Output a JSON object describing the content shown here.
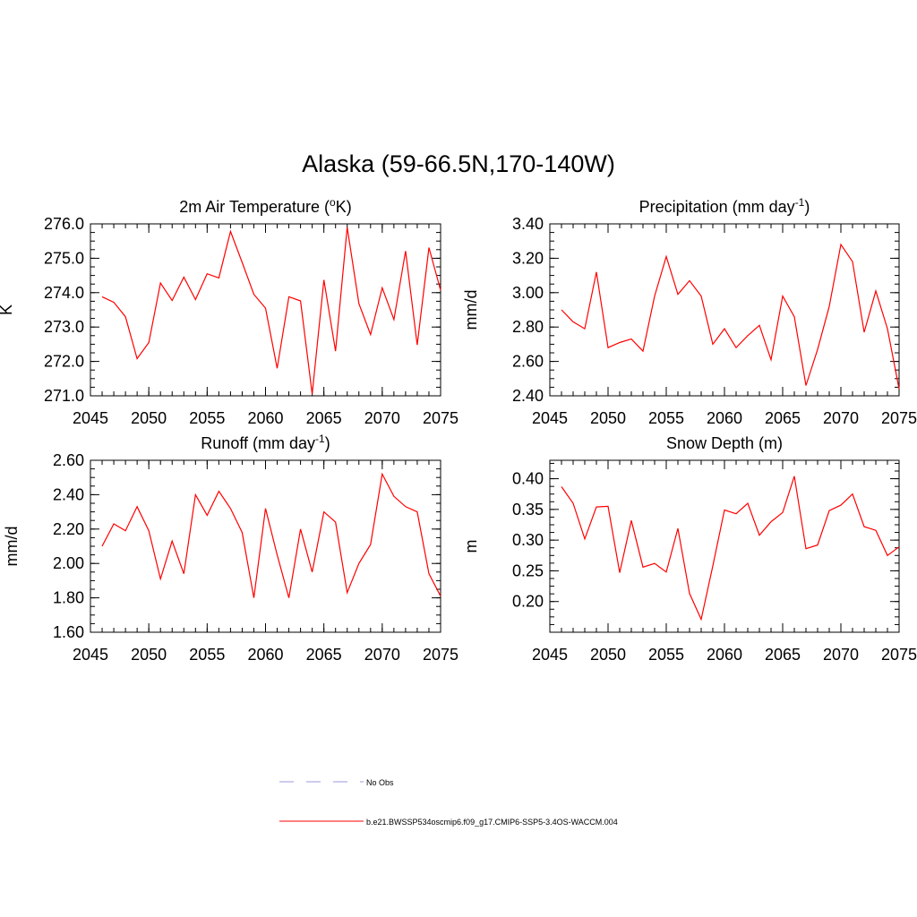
{
  "title": "Alaska (59-66.5N,170-140W)",
  "legend": {
    "obs_label": "No Obs",
    "obs_color": "#9999dd",
    "model_label": "b.e21.BWSSP534oscmip6.f09_g17.CMIP6-SSP5-3.4OS-WACCM.004",
    "model_color": "#ff0000"
  },
  "chart_data": [
    {
      "type": "line",
      "title": "2m Air Temperature (",
      "title_sup": "o",
      "title_suffix": "K)",
      "ylabel": "K",
      "xlabel": "",
      "xlim": [
        2045,
        2075
      ],
      "ylim": [
        271.0,
        276.0
      ],
      "xticks": [
        2045,
        2050,
        2055,
        2060,
        2065,
        2070,
        2075
      ],
      "xtick_labels": [
        "2045",
        "2050",
        "2055",
        "2060",
        "2065",
        "2070",
        "2075"
      ],
      "yticks": [
        271.0,
        272.0,
        273.0,
        274.0,
        275.0,
        276.0
      ],
      "ytick_labels": [
        "271.0",
        "272.0",
        "273.0",
        "274.0",
        "275.0",
        "276.0"
      ],
      "series": [
        {
          "name": "b.e21.BWSSP534oscmip6.f09_g17.CMIP6-SSP5-3.4OS-WACCM.004",
          "color": "#ff0000",
          "x": [
            2046,
            2047,
            2048,
            2049,
            2050,
            2051,
            2052,
            2053,
            2054,
            2055,
            2056,
            2057,
            2058,
            2059,
            2060,
            2061,
            2062,
            2063,
            2064,
            2065,
            2066,
            2067,
            2068,
            2069,
            2070,
            2071,
            2072,
            2073,
            2074,
            2075
          ],
          "values": [
            273.88,
            273.72,
            273.3,
            272.08,
            272.55,
            274.28,
            273.77,
            274.45,
            273.8,
            274.55,
            274.43,
            275.78,
            274.88,
            273.95,
            273.55,
            271.8,
            273.88,
            273.76,
            271.05,
            274.37,
            272.3,
            275.9,
            273.68,
            272.78,
            274.14,
            273.22,
            275.21,
            272.48,
            275.31,
            274.07
          ]
        }
      ]
    },
    {
      "type": "line",
      "title": "Precipitation (mm day",
      "title_sup": "-1",
      "title_suffix": ")",
      "ylabel": "mm/d",
      "xlabel": "",
      "xlim": [
        2045,
        2075
      ],
      "ylim": [
        2.4,
        3.4
      ],
      "xticks": [
        2045,
        2050,
        2055,
        2060,
        2065,
        2070,
        2075
      ],
      "xtick_labels": [
        "2045",
        "2050",
        "2055",
        "2060",
        "2065",
        "2070",
        "2075"
      ],
      "yticks": [
        2.4,
        2.6,
        2.8,
        3.0,
        3.2,
        3.4
      ],
      "ytick_labels": [
        "2.40",
        "2.60",
        "2.80",
        "3.00",
        "3.20",
        "3.40"
      ],
      "series": [
        {
          "name": "b.e21.BWSSP534oscmip6.f09_g17.CMIP6-SSP5-3.4OS-WACCM.004",
          "color": "#ff0000",
          "x": [
            2046,
            2047,
            2048,
            2049,
            2050,
            2051,
            2052,
            2053,
            2054,
            2055,
            2056,
            2057,
            2058,
            2059,
            2060,
            2061,
            2062,
            2063,
            2064,
            2065,
            2066,
            2067,
            2068,
            2069,
            2070,
            2071,
            2072,
            2073,
            2074,
            2075
          ],
          "values": [
            2.9,
            2.83,
            2.79,
            3.12,
            2.68,
            2.71,
            2.73,
            2.66,
            2.98,
            3.21,
            2.99,
            3.07,
            2.98,
            2.7,
            2.79,
            2.68,
            2.75,
            2.81,
            2.61,
            2.98,
            2.86,
            2.46,
            2.67,
            2.92,
            3.28,
            3.18,
            2.77,
            3.01,
            2.79,
            2.44
          ]
        }
      ]
    },
    {
      "type": "line",
      "title": "Runoff (mm day",
      "title_sup": "-1",
      "title_suffix": ")",
      "ylabel": "mm/d",
      "xlabel": "",
      "xlim": [
        2045,
        2075
      ],
      "ylim": [
        1.6,
        2.6
      ],
      "xticks": [
        2045,
        2050,
        2055,
        2060,
        2065,
        2070,
        2075
      ],
      "xtick_labels": [
        "2045",
        "2050",
        "2055",
        "2060",
        "2065",
        "2070",
        "2075"
      ],
      "yticks": [
        1.6,
        1.8,
        2.0,
        2.2,
        2.4,
        2.6
      ],
      "ytick_labels": [
        "1.60",
        "1.80",
        "2.00",
        "2.20",
        "2.40",
        "2.60"
      ],
      "series": [
        {
          "name": "b.e21.BWSSP534oscmip6.f09_g17.CMIP6-SSP5-3.4OS-WACCM.004",
          "color": "#ff0000",
          "x": [
            2046,
            2047,
            2048,
            2049,
            2050,
            2051,
            2052,
            2053,
            2054,
            2055,
            2056,
            2057,
            2058,
            2059,
            2060,
            2061,
            2062,
            2063,
            2064,
            2065,
            2066,
            2067,
            2068,
            2069,
            2070,
            2071,
            2072,
            2073,
            2074,
            2075
          ],
          "values": [
            2.1,
            2.23,
            2.19,
            2.33,
            2.19,
            1.91,
            2.13,
            1.94,
            2.4,
            2.28,
            2.42,
            2.32,
            2.18,
            1.8,
            2.32,
            2.05,
            1.8,
            2.2,
            1.95,
            2.3,
            2.24,
            1.83,
            2.0,
            2.11,
            2.52,
            2.39,
            2.33,
            2.3,
            1.94,
            1.81
          ]
        }
      ]
    },
    {
      "type": "line",
      "title": "Snow Depth (m)",
      "title_sup": "",
      "title_suffix": "",
      "ylabel": "m",
      "xlabel": "",
      "xlim": [
        2045,
        2075
      ],
      "ylim": [
        0.15,
        0.43
      ],
      "xticks": [
        2045,
        2050,
        2055,
        2060,
        2065,
        2070,
        2075
      ],
      "xtick_labels": [
        "2045",
        "2050",
        "2055",
        "2060",
        "2065",
        "2070",
        "2075"
      ],
      "yticks": [
        0.2,
        0.25,
        0.3,
        0.35,
        0.4
      ],
      "ytick_labels": [
        "0.20",
        "0.25",
        "0.30",
        "0.35",
        "0.40"
      ],
      "series": [
        {
          "name": "b.e21.BWSSP534oscmip6.f09_g17.CMIP6-SSP5-3.4OS-WACCM.004",
          "color": "#ff0000",
          "x": [
            2046,
            2047,
            2048,
            2049,
            2050,
            2051,
            2052,
            2053,
            2054,
            2055,
            2056,
            2057,
            2058,
            2059,
            2060,
            2061,
            2062,
            2063,
            2064,
            2065,
            2066,
            2067,
            2068,
            2069,
            2070,
            2071,
            2072,
            2073,
            2074,
            2075
          ],
          "values": [
            0.387,
            0.36,
            0.302,
            0.354,
            0.355,
            0.247,
            0.332,
            0.256,
            0.262,
            0.248,
            0.319,
            0.213,
            0.171,
            0.258,
            0.349,
            0.343,
            0.36,
            0.308,
            0.33,
            0.345,
            0.404,
            0.286,
            0.292,
            0.348,
            0.357,
            0.375,
            0.322,
            0.316,
            0.275,
            0.289
          ]
        }
      ]
    }
  ]
}
